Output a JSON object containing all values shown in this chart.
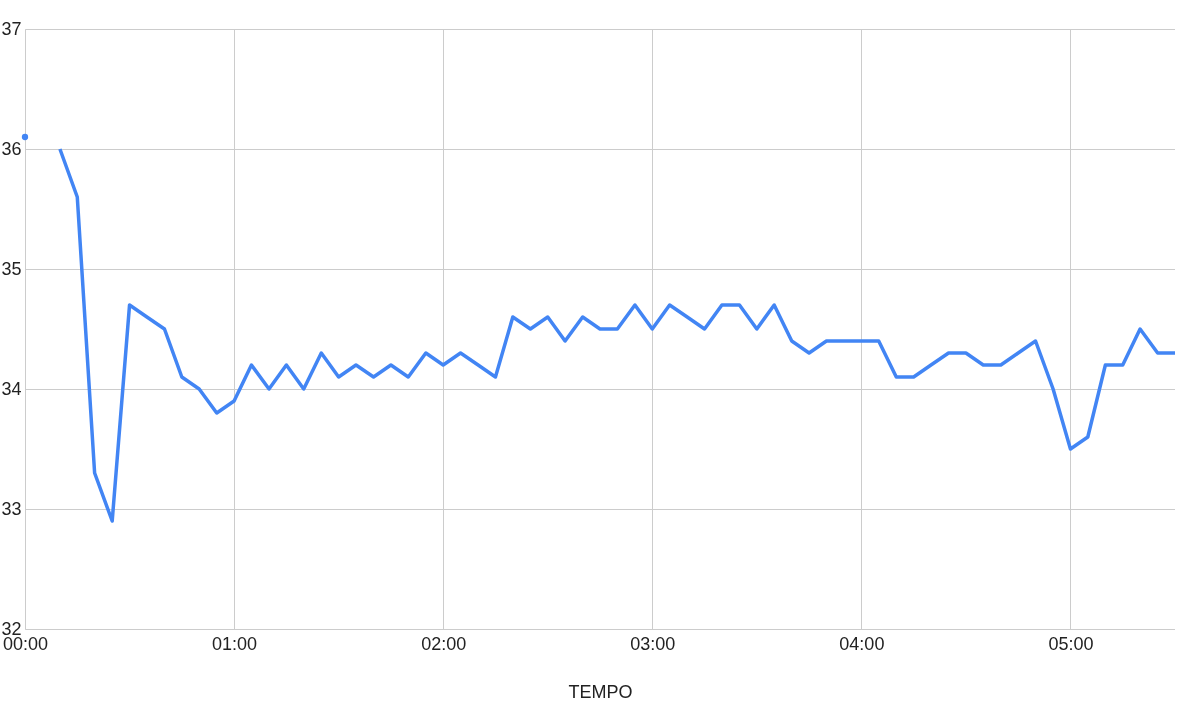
{
  "chart_data": {
    "type": "line",
    "xlabel": "TEMPO",
    "x": [
      0,
      0.083,
      0.167,
      0.25,
      0.333,
      0.417,
      0.5,
      0.583,
      0.667,
      0.75,
      0.833,
      0.917,
      1,
      1.083,
      1.167,
      1.25,
      1.333,
      1.417,
      1.5,
      1.583,
      1.667,
      1.75,
      1.833,
      1.917,
      2,
      2.083,
      2.167,
      2.25,
      2.333,
      2.417,
      2.5,
      2.583,
      2.667,
      2.75,
      2.833,
      2.917,
      3,
      3.083,
      3.167,
      3.25,
      3.333,
      3.417,
      3.5,
      3.583,
      3.667,
      3.75,
      3.833,
      3.917,
      4,
      4.083,
      4.167,
      4.25,
      4.333,
      4.417,
      4.5,
      4.583,
      4.667,
      4.75,
      4.833,
      4.917,
      5,
      5.083,
      5.167,
      5.25,
      5.333,
      5.417,
      5.5
    ],
    "series": [
      {
        "color": "#4285f4",
        "values": [
          36.1,
          null,
          36.0,
          35.6,
          33.3,
          32.9,
          34.7,
          34.6,
          34.5,
          34.1,
          34.0,
          33.8,
          33.9,
          34.2,
          34.0,
          34.2,
          34.0,
          34.3,
          34.1,
          34.2,
          34.1,
          34.2,
          34.1,
          34.3,
          34.2,
          34.3,
          34.2,
          34.1,
          34.6,
          34.5,
          34.6,
          34.4,
          34.6,
          34.5,
          34.5,
          34.7,
          34.5,
          34.7,
          34.6,
          34.5,
          34.7,
          34.7,
          34.5,
          34.7,
          34.4,
          34.3,
          34.4,
          34.4,
          34.4,
          34.4,
          34.1,
          34.1,
          34.2,
          34.3,
          34.3,
          34.2,
          34.2,
          34.3,
          34.4,
          34.0,
          33.5,
          33.6,
          34.2,
          34.2,
          34.5,
          34.3,
          34.3
        ]
      }
    ],
    "xlim": [
      0,
      5.5
    ],
    "xticks": [
      {
        "value": 0,
        "label": "00:00"
      },
      {
        "value": 1,
        "label": "01:00"
      },
      {
        "value": 2,
        "label": "02:00"
      },
      {
        "value": 3,
        "label": "03:00"
      },
      {
        "value": 4,
        "label": "04:00"
      },
      {
        "value": 5,
        "label": "05:00"
      }
    ],
    "ylim": [
      32,
      37
    ],
    "yticks": [
      32,
      33,
      34,
      35,
      36,
      37
    ],
    "grid": true,
    "marker": "none",
    "line_style": "solid",
    "legend": false
  }
}
